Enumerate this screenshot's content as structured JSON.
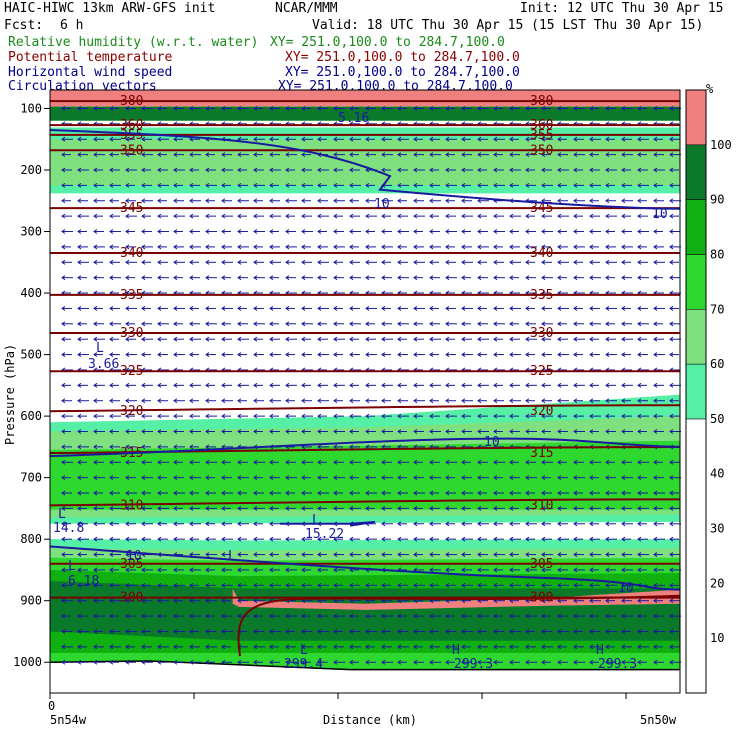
{
  "header": {
    "left_title": "HAIC-HIWC 13km ARW-GFS init",
    "center_title": "NCAR/MMM",
    "init": "Init: 12 UTC Thu 30 Apr 15",
    "fcst_label": "Fcst:",
    "fcst_value": "6 h",
    "valid": "Valid: 18 UTC Thu 30 Apr 15 (15 LST Thu 30 Apr 15)"
  },
  "fields": [
    {
      "name": "Relative humidity (w.r.t. water)",
      "xy": "XY= 251.0,100.0 to 284.7,100.0",
      "color": "#1a8a1a"
    },
    {
      "name": "Potential temperature",
      "xy": "XY= 251.0,100.0 to 284.7,100.0",
      "color": "#8b0000"
    },
    {
      "name": "Horizontal wind speed",
      "xy": "XY= 251.0,100.0 to 284.7,100.0",
      "color": "#00008b"
    },
    {
      "name": "Circulation vectors",
      "xy": "XY= 251.0,100.0 to 284.7,100.0",
      "color": "#00008b"
    }
  ],
  "chart_data": {
    "type": "heatmap",
    "title": "",
    "xlabel": "Distance (km)",
    "ylabel": "Pressure (hPa)",
    "x_start_tick": "0",
    "x_left_label": "5n54w",
    "x_right_label": "5n50w",
    "ylim": [
      1050,
      70
    ],
    "y_ticks": [
      100,
      200,
      300,
      400,
      500,
      600,
      700,
      800,
      900,
      1000
    ],
    "colorbar": {
      "unit": "%",
      "ticks": [
        10,
        20,
        30,
        40,
        50,
        60,
        70,
        80,
        90,
        100
      ],
      "bins": [
        {
          "from": 0,
          "to": 50,
          "color": "#ffffff"
        },
        {
          "from": 50,
          "to": 60,
          "color": "#55f0a5"
        },
        {
          "from": 60,
          "to": 70,
          "color": "#7ee07e"
        },
        {
          "from": 70,
          "to": 80,
          "color": "#2ed82e"
        },
        {
          "from": 80,
          "to": 90,
          "color": "#10b010"
        },
        {
          "from": 90,
          "to": 100,
          "color": "#0a7a2a"
        },
        {
          "from": 100,
          "to": 110,
          "color": "#f08080"
        }
      ]
    },
    "theta_contours": [
      {
        "label": "380",
        "p": 88
      },
      {
        "label": "360",
        "p": 127
      },
      {
        "label": "355",
        "p": 143
      },
      {
        "label": "350",
        "p": 168
      },
      {
        "label": "345",
        "p": 262
      },
      {
        "label": "340",
        "p": 335
      },
      {
        "label": "335",
        "p": 403
      },
      {
        "label": "330",
        "p": 465
      },
      {
        "label": "325",
        "p": 527
      },
      {
        "label": "320",
        "p": 592
      },
      {
        "label": "315",
        "p": 660
      },
      {
        "label": "310",
        "p": 745
      },
      {
        "label": "305",
        "p": 840
      },
      {
        "label": "300",
        "p": 895
      }
    ],
    "wind_labels": [
      "5.16",
      "10",
      "10",
      "3.66",
      "10",
      "15.22",
      "14.8",
      "10",
      "6.18",
      "10",
      "299.4",
      "299.3",
      "299.3"
    ],
    "wind_extrema": [
      "L",
      "L",
      "H",
      "H",
      "L",
      "L",
      "L",
      "L"
    ]
  }
}
